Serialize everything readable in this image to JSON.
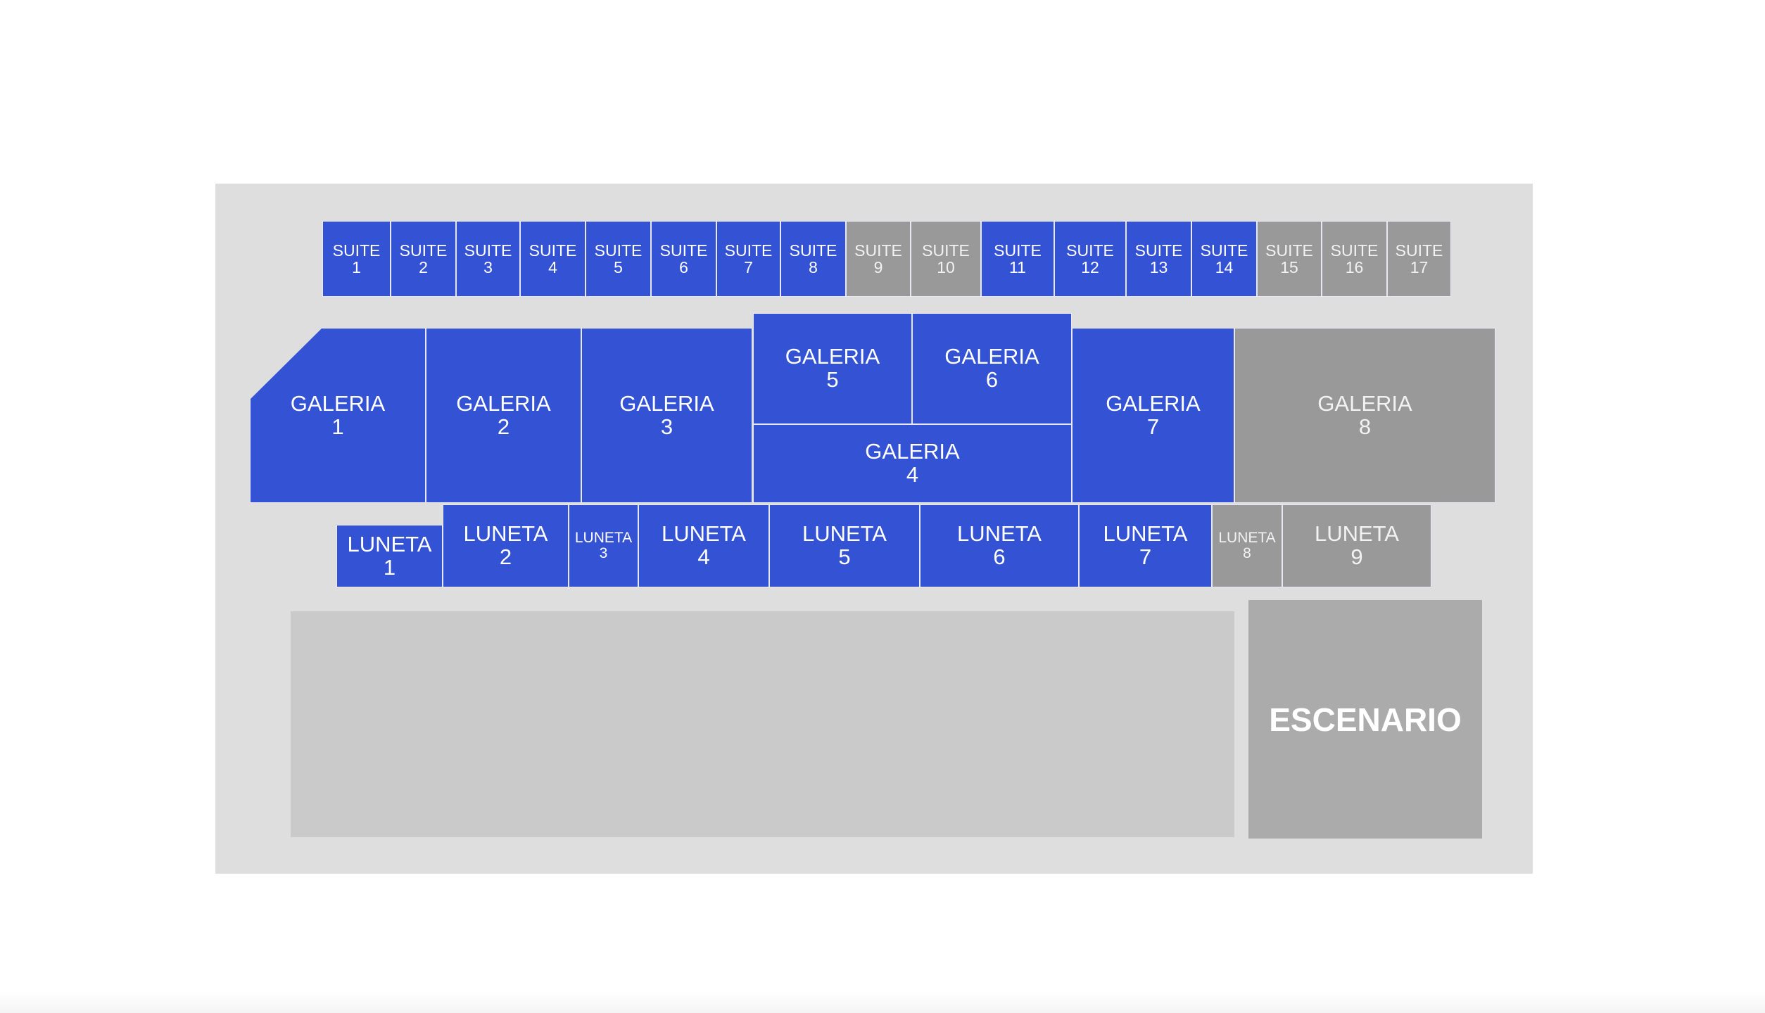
{
  "colors": {
    "available": "#3452d4",
    "unavailable": "#999999",
    "panel": "#dedede",
    "floor": "#cacaca",
    "stage": "#ababab"
  },
  "stage_label": "ESCENARIO",
  "sections": {
    "suite1": {
      "name": "SUITE",
      "num": "1",
      "status": "available"
    },
    "suite2": {
      "name": "SUITE",
      "num": "2",
      "status": "available"
    },
    "suite3": {
      "name": "SUITE",
      "num": "3",
      "status": "available"
    },
    "suite4": {
      "name": "SUITE",
      "num": "4",
      "status": "available"
    },
    "suite5": {
      "name": "SUITE",
      "num": "5",
      "status": "available"
    },
    "suite6": {
      "name": "SUITE",
      "num": "6",
      "status": "available"
    },
    "suite7": {
      "name": "SUITE",
      "num": "7",
      "status": "available"
    },
    "suite8": {
      "name": "SUITE",
      "num": "8",
      "status": "available"
    },
    "suite9": {
      "name": "SUITE",
      "num": "9",
      "status": "unavailable"
    },
    "suite10": {
      "name": "SUITE",
      "num": "10",
      "status": "unavailable"
    },
    "suite11": {
      "name": "SUITE",
      "num": "11",
      "status": "available"
    },
    "suite12": {
      "name": "SUITE",
      "num": "12",
      "status": "available"
    },
    "suite13": {
      "name": "SUITE",
      "num": "13",
      "status": "available"
    },
    "suite14": {
      "name": "SUITE",
      "num": "14",
      "status": "available"
    },
    "suite15": {
      "name": "SUITE",
      "num": "15",
      "status": "unavailable"
    },
    "suite16": {
      "name": "SUITE",
      "num": "16",
      "status": "unavailable"
    },
    "suite17": {
      "name": "SUITE",
      "num": "17",
      "status": "unavailable"
    },
    "galeria1": {
      "name": "GALERIA",
      "num": "1",
      "status": "available"
    },
    "galeria2": {
      "name": "GALERIA",
      "num": "2",
      "status": "available"
    },
    "galeria3": {
      "name": "GALERIA",
      "num": "3",
      "status": "available"
    },
    "galeria4": {
      "name": "GALERIA",
      "num": "4",
      "status": "available"
    },
    "galeria5": {
      "name": "GALERIA",
      "num": "5",
      "status": "available"
    },
    "galeria6": {
      "name": "GALERIA",
      "num": "6",
      "status": "available"
    },
    "galeria7": {
      "name": "GALERIA",
      "num": "7",
      "status": "available"
    },
    "galeria8": {
      "name": "GALERIA",
      "num": "8",
      "status": "unavailable"
    },
    "luneta1": {
      "name": "LUNETA",
      "num": "1",
      "status": "available"
    },
    "luneta2": {
      "name": "LUNETA",
      "num": "2",
      "status": "available"
    },
    "luneta3": {
      "name": "LUNETA",
      "num": "3",
      "status": "available"
    },
    "luneta4": {
      "name": "LUNETA",
      "num": "4",
      "status": "available"
    },
    "luneta5": {
      "name": "LUNETA",
      "num": "5",
      "status": "available"
    },
    "luneta6": {
      "name": "LUNETA",
      "num": "6",
      "status": "available"
    },
    "luneta7": {
      "name": "LUNETA",
      "num": "7",
      "status": "available"
    },
    "luneta8": {
      "name": "LUNETA",
      "num": "8",
      "status": "unavailable"
    },
    "luneta9": {
      "name": "LUNETA",
      "num": "9",
      "status": "unavailable"
    }
  }
}
